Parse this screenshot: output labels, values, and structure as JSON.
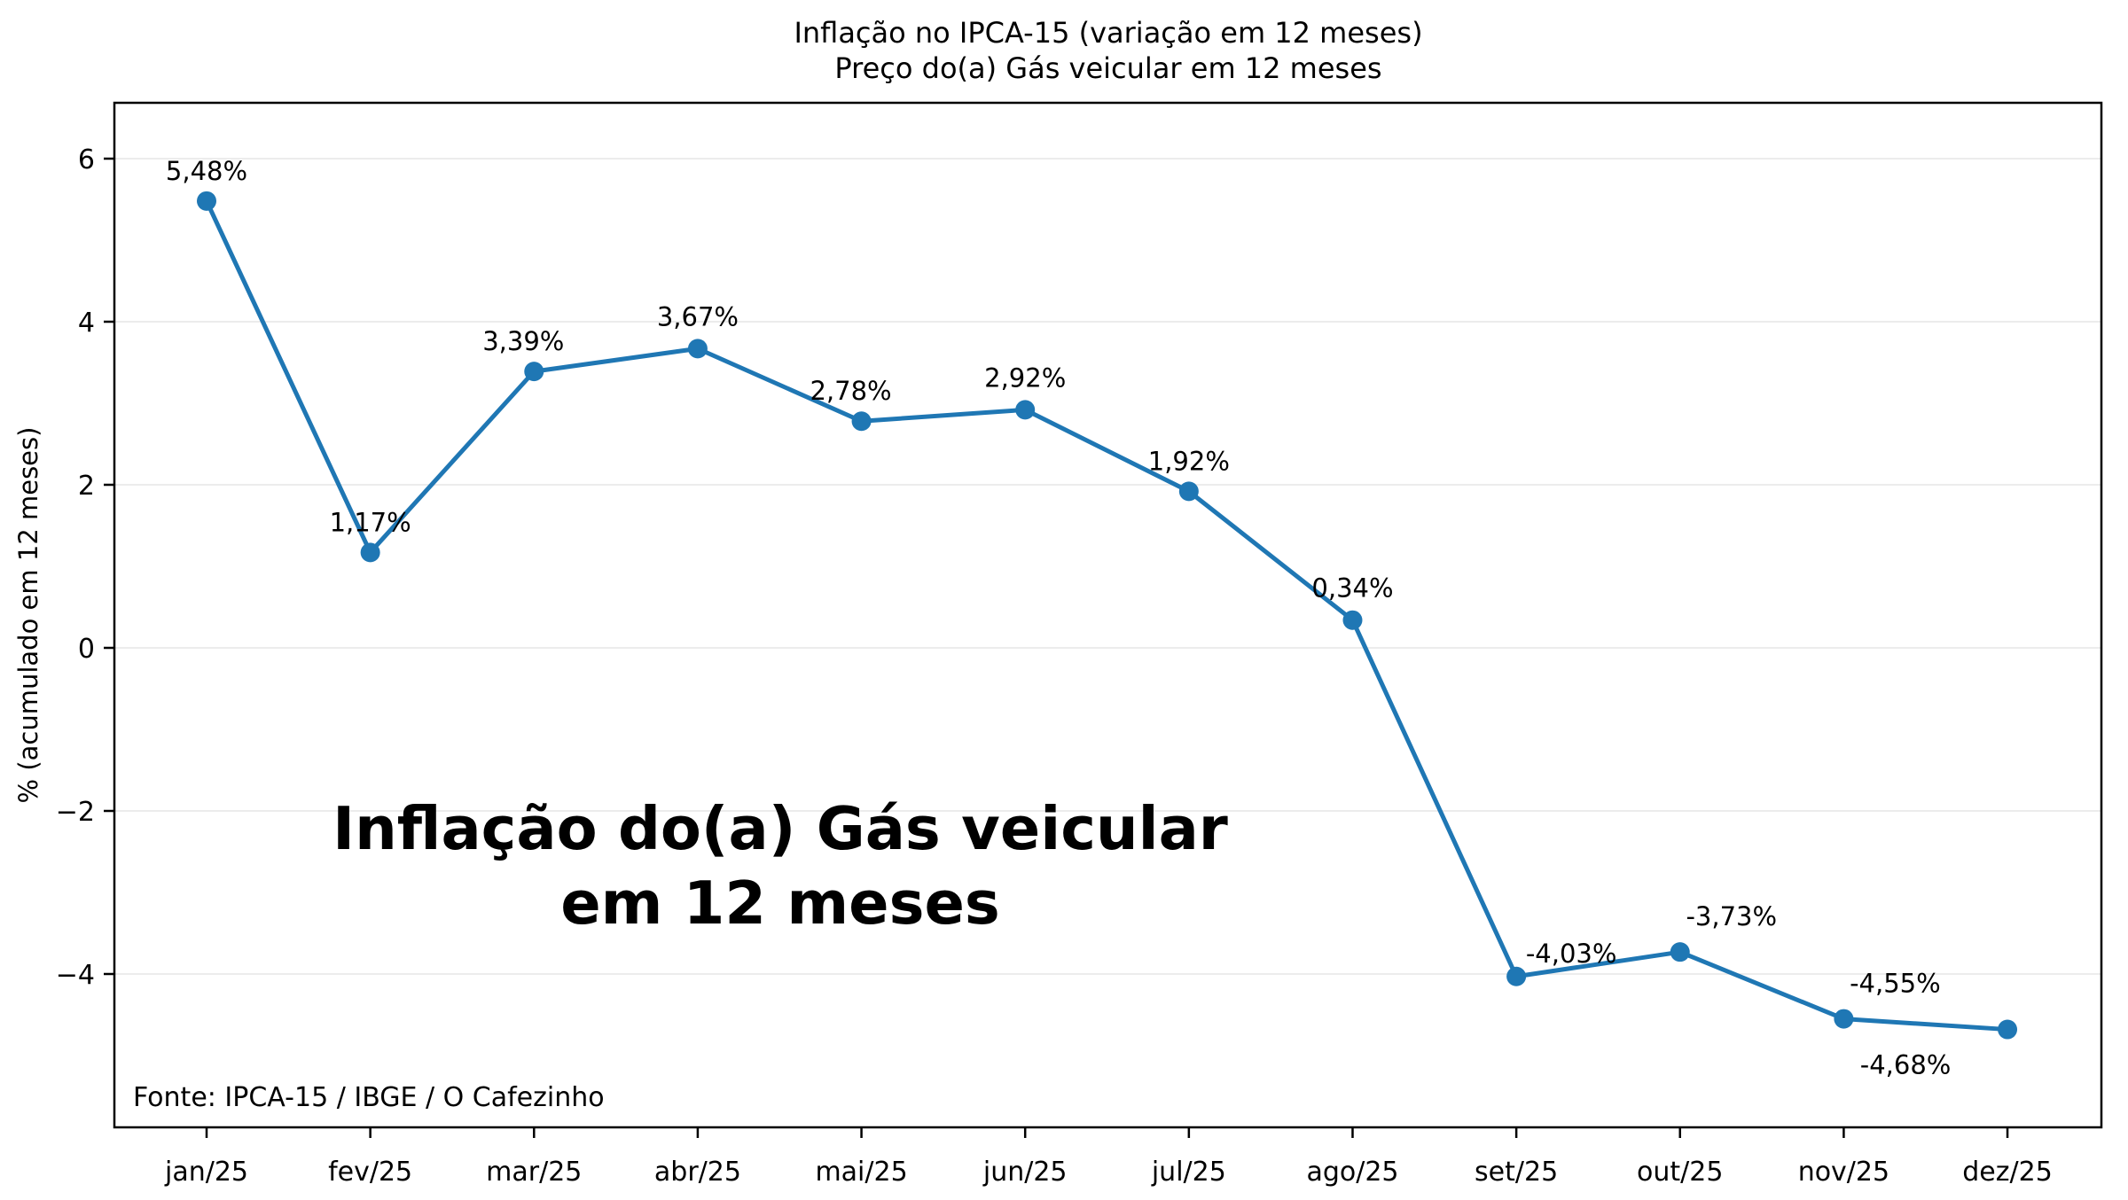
{
  "chart_data": {
    "type": "line",
    "title": "Inflação no IPCA-15 (variação em 12 meses)",
    "subtitle": "Preço do(a) Gás veicular em 12 meses",
    "ylabel": "% (acumulado em 12 meses)",
    "source": "Fonte: IPCA-15 / IBGE / O Cafezinho",
    "watermark_line1": "Inflação do(a) Gás veicular",
    "watermark_line2": "em 12 meses",
    "categories": [
      "jan/25",
      "fev/25",
      "mar/25",
      "abr/25",
      "mai/25",
      "jun/25",
      "jul/25",
      "ago/25",
      "set/25",
      "out/25",
      "nov/25",
      "dez/25"
    ],
    "values": [
      5.48,
      1.17,
      3.39,
      3.67,
      2.78,
      2.92,
      1.92,
      0.34,
      -4.03,
      -3.73,
      -4.55,
      -4.68
    ],
    "point_labels": [
      "5,48%",
      "1,17%",
      "3,39%",
      "3,67%",
      "2,78%",
      "2,92%",
      "1,92%",
      "0,34%",
      "-4,03%",
      "-3,73%",
      "-4,55%",
      "-4,68%"
    ],
    "yticks": [
      6,
      4,
      2,
      0,
      -2,
      -4
    ],
    "ytick_labels": [
      "6",
      "4",
      "2",
      "0",
      "−2",
      "−4"
    ],
    "ylim": [
      -5.9,
      6.7
    ],
    "grid": "horizontal",
    "legend": "none",
    "line_color": "#1f77b4",
    "grid_color": "#e5e5e5",
    "spine_color": "#000000",
    "watermark_color": "#b4b4b4",
    "text_color": "#000000"
  }
}
